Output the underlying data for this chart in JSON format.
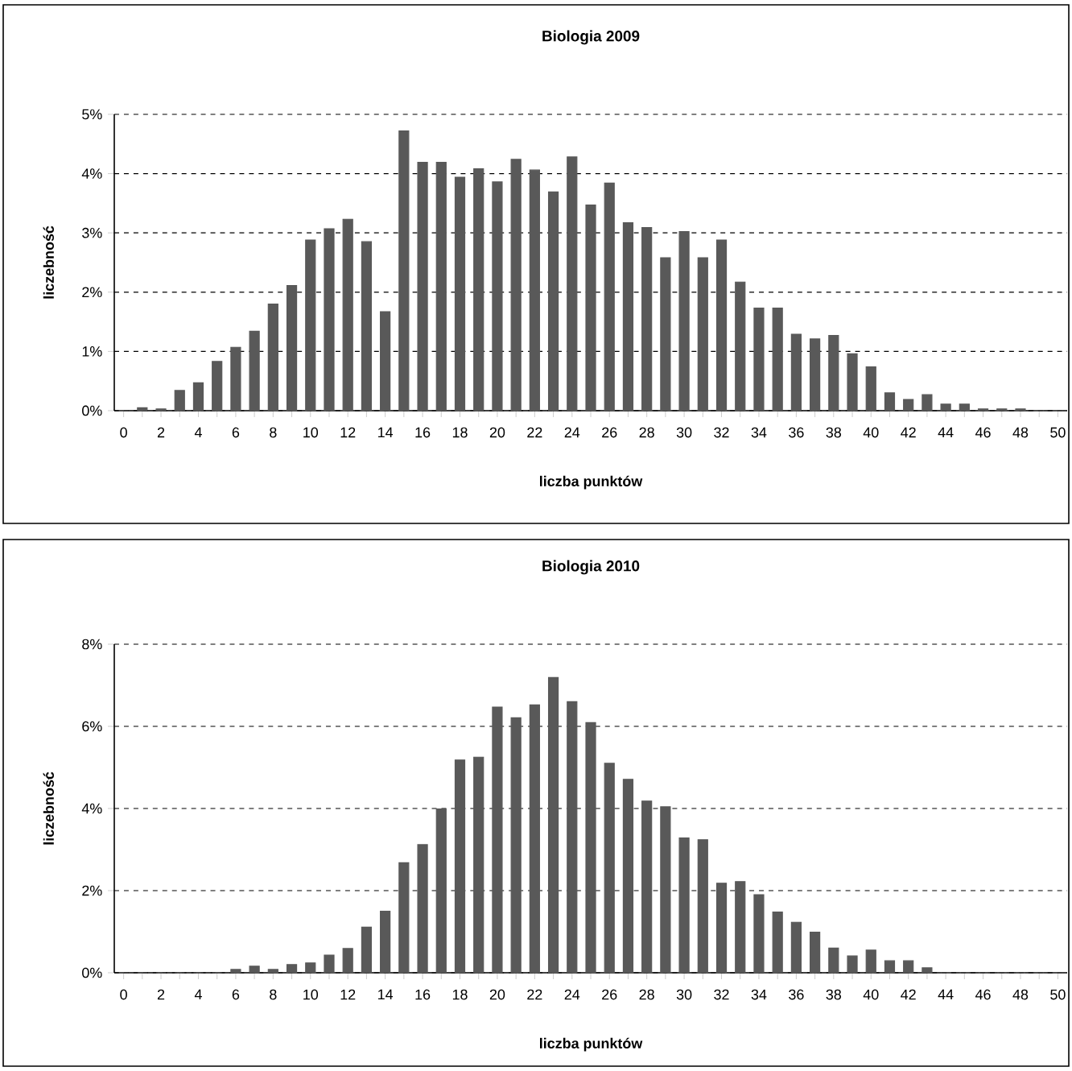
{
  "chart_data": [
    {
      "type": "bar",
      "title": "Biologia 2009",
      "xlabel": "liczba punktów",
      "ylabel": "liczebność",
      "color": "#595959",
      "grid": "y",
      "categories": [
        "0",
        null,
        "2",
        null,
        "4",
        null,
        "6",
        null,
        "8",
        null,
        "10",
        null,
        "12",
        null,
        "14",
        null,
        "16",
        null,
        "18",
        null,
        "20",
        null,
        "22",
        null,
        "24",
        null,
        "26",
        null,
        "28",
        null,
        "30",
        null,
        "32",
        null,
        "34",
        null,
        "36",
        null,
        "38",
        null,
        "40",
        null,
        "42",
        null,
        "44",
        null,
        "46",
        null,
        "48",
        null,
        "50"
      ],
      "values": [
        0,
        0.05,
        0.03,
        0.34,
        0.47,
        0.83,
        1.07,
        1.34,
        1.8,
        2.11,
        2.88,
        3.07,
        3.23,
        2.85,
        1.67,
        4.72,
        4.19,
        4.19,
        3.94,
        4.08,
        3.86,
        4.24,
        4.06,
        3.69,
        4.28,
        3.47,
        3.84,
        3.17,
        3.09,
        2.58,
        3.02,
        2.58,
        2.88,
        2.17,
        1.73,
        1.73,
        1.29,
        1.21,
        1.27,
        0.96,
        0.74,
        0.3,
        0.19,
        0.27,
        0.11,
        0.11,
        0.03,
        0.03,
        0.03,
        0,
        0
      ],
      "ylim": [
        0,
        5
      ],
      "yticks": [
        {
          "value": 0,
          "label": "0%"
        },
        {
          "value": 1,
          "label": "1%"
        },
        {
          "value": 2,
          "label": "2%"
        },
        {
          "value": 3,
          "label": "3%"
        },
        {
          "value": 4,
          "label": "4%"
        },
        {
          "value": 5,
          "label": "5%"
        }
      ]
    },
    {
      "type": "bar",
      "title": "Biologia 2010",
      "xlabel": "liczba punktów",
      "ylabel": "liczebność",
      "color": "#595959",
      "grid": "y",
      "categories": [
        "0",
        null,
        "2",
        null,
        "4",
        null,
        "6",
        null,
        "8",
        null,
        "10",
        null,
        "12",
        null,
        "14",
        null,
        "16",
        null,
        "18",
        null,
        "20",
        null,
        "22",
        null,
        "24",
        null,
        "26",
        null,
        "28",
        null,
        "30",
        null,
        "32",
        null,
        "34",
        null,
        "36",
        null,
        "38",
        null,
        "40",
        null,
        "42",
        null,
        "44",
        null,
        "46",
        null,
        "48",
        null,
        "50"
      ],
      "values": [
        0,
        0,
        0,
        0,
        0,
        0,
        0.08,
        0.16,
        0.08,
        0.2,
        0.24,
        0.43,
        0.59,
        1.11,
        1.5,
        2.68,
        3.12,
        3.99,
        5.18,
        5.25,
        6.47,
        6.21,
        6.52,
        7.19,
        6.6,
        6.09,
        5.1,
        4.71,
        4.18,
        4.04,
        3.28,
        3.24,
        2.18,
        2.22,
        1.9,
        1.48,
        1.23,
        0.99,
        0.6,
        0.41,
        0.55,
        0.29,
        0.29,
        0.12,
        0,
        0,
        0,
        0,
        0,
        0,
        0
      ],
      "ylim": [
        0,
        8
      ],
      "yticks": [
        {
          "value": 0,
          "label": "0%"
        },
        {
          "value": 2,
          "label": "2%"
        },
        {
          "value": 4,
          "label": "4%"
        },
        {
          "value": 6,
          "label": "6%"
        },
        {
          "value": 8,
          "label": "8%"
        }
      ]
    }
  ]
}
